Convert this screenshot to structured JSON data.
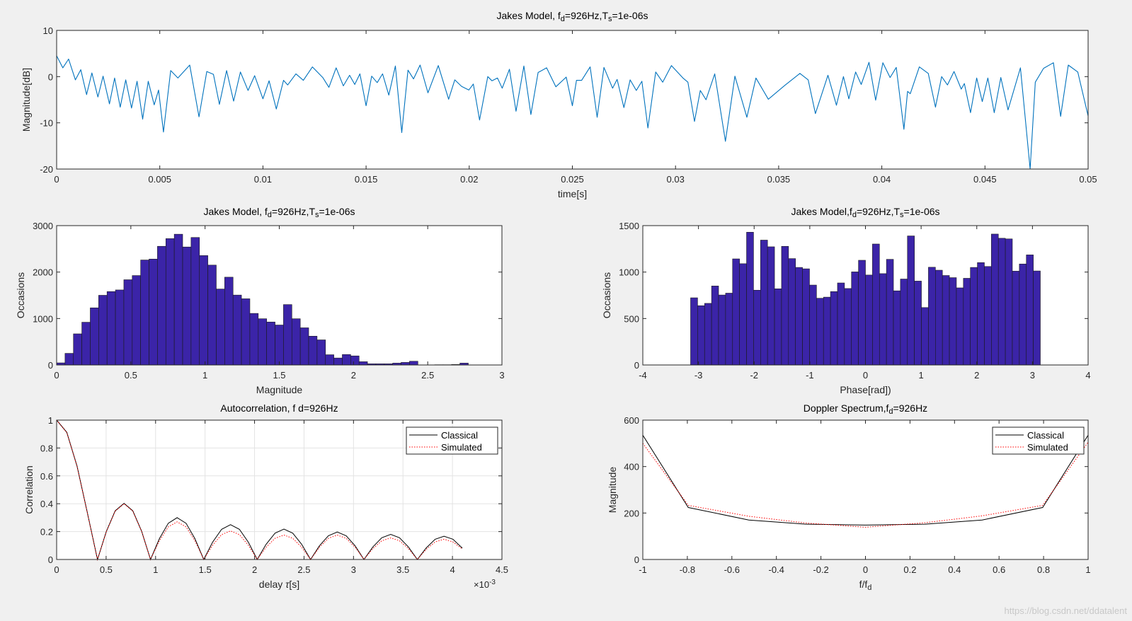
{
  "figure": {
    "watermark": "https://blog.csdn.net/ddatalent"
  },
  "chart_data": [
    {
      "id": "envelope",
      "type": "line",
      "title_parts": [
        {
          "text": "Jakes Model, f"
        },
        {
          "text": "d",
          "sub": true
        },
        {
          "text": "=926Hz,T"
        },
        {
          "text": "s",
          "sub": true
        },
        {
          "text": "=1e-06s"
        }
      ],
      "xlabel": "time[s]",
      "ylabel": "Magnitude[dB]",
      "xlim": [
        0,
        0.05
      ],
      "ylim": [
        -20,
        10
      ],
      "x_ticks": [
        0,
        0.005,
        0.01,
        0.015,
        0.02,
        0.025,
        0.03,
        0.035,
        0.04,
        0.045,
        0.05
      ],
      "x_tick_labels": [
        "0",
        "0.005",
        "0.01",
        "0.015",
        "0.02",
        "0.025",
        "0.03",
        "0.035",
        "0.04",
        "0.045",
        "0.05"
      ],
      "y_ticks": [
        -20,
        -10,
        0,
        10
      ],
      "y_tick_labels": [
        "-20",
        "-10",
        "0",
        "10"
      ],
      "color": "#0072bd",
      "points_ms_db": [
        [
          0,
          4.5
        ],
        [
          0.3,
          1.9
        ],
        [
          0.58,
          3.8
        ],
        [
          0.91,
          -0.7
        ],
        [
          1.17,
          1.5
        ],
        [
          1.45,
          -3.9
        ],
        [
          1.71,
          0.8
        ],
        [
          2.0,
          -4.4
        ],
        [
          2.25,
          0.1
        ],
        [
          2.56,
          -5.9
        ],
        [
          2.81,
          -0.3
        ],
        [
          3.08,
          -6.6
        ],
        [
          3.35,
          -0.7
        ],
        [
          3.63,
          -6.8
        ],
        [
          3.9,
          -1.0
        ],
        [
          4.17,
          -9.2
        ],
        [
          4.44,
          -1.0
        ],
        [
          4.73,
          -6.1
        ],
        [
          4.94,
          -2.9
        ],
        [
          5.18,
          -12
        ],
        [
          5.53,
          1.3
        ],
        [
          5.88,
          -0.3
        ],
        [
          6.45,
          2.5
        ],
        [
          6.9,
          -8.7
        ],
        [
          7.28,
          1.1
        ],
        [
          7.6,
          0.5
        ],
        [
          7.89,
          -6
        ],
        [
          8.24,
          1.3
        ],
        [
          8.58,
          -5.3
        ],
        [
          8.91,
          1.0
        ],
        [
          9.28,
          -3
        ],
        [
          9.6,
          0.2
        ],
        [
          10.0,
          -4.8
        ],
        [
          10.3,
          -0.9
        ],
        [
          10.65,
          -7
        ],
        [
          11.0,
          -0.8
        ],
        [
          11.2,
          -1.8
        ],
        [
          11.6,
          0.6
        ],
        [
          11.96,
          -0.8
        ],
        [
          12.4,
          2.1
        ],
        [
          12.9,
          -0.2
        ],
        [
          13.2,
          -2.3
        ],
        [
          13.55,
          1.9
        ],
        [
          13.9,
          -2
        ],
        [
          14.2,
          0.3
        ],
        [
          14.45,
          -1.7
        ],
        [
          14.7,
          0.6
        ],
        [
          15.0,
          -6.3
        ],
        [
          15.27,
          0.1
        ],
        [
          15.54,
          -1.3
        ],
        [
          15.8,
          0.6
        ],
        [
          16.1,
          -4
        ],
        [
          16.42,
          2.3
        ],
        [
          16.73,
          -12.1
        ],
        [
          17.03,
          1.4
        ],
        [
          17.3,
          -0.5
        ],
        [
          17.62,
          2.5
        ],
        [
          18.0,
          -3.5
        ],
        [
          18.5,
          2.4
        ],
        [
          19.0,
          -4.9
        ],
        [
          19.3,
          -0.7
        ],
        [
          19.63,
          -2.1
        ],
        [
          19.98,
          -2.9
        ],
        [
          20.2,
          -1.6
        ],
        [
          20.5,
          -9.4
        ],
        [
          20.9,
          0
        ],
        [
          21.1,
          -0.9
        ],
        [
          21.37,
          -0.3
        ],
        [
          21.6,
          -2.5
        ],
        [
          21.95,
          1.6
        ],
        [
          22.27,
          -7.5
        ],
        [
          22.65,
          2.3
        ],
        [
          22.99,
          -8.2
        ],
        [
          23.34,
          0.9
        ],
        [
          23.75,
          1.9
        ],
        [
          24.2,
          -2.2
        ],
        [
          24.7,
          -0.1
        ],
        [
          25.0,
          -6.3
        ],
        [
          25.2,
          -0.8
        ],
        [
          25.45,
          -0.8
        ],
        [
          25.86,
          2.1
        ],
        [
          26.2,
          -8.8
        ],
        [
          26.53,
          2.0
        ],
        [
          26.95,
          -2.5
        ],
        [
          27.17,
          -0.6
        ],
        [
          27.5,
          -6.7
        ],
        [
          27.8,
          -0.7
        ],
        [
          28.1,
          -3
        ],
        [
          28.37,
          -1
        ],
        [
          28.66,
          -11.1
        ],
        [
          29.04,
          1
        ],
        [
          29.38,
          -1.2
        ],
        [
          29.8,
          2.4
        ],
        [
          30.36,
          -0.3
        ],
        [
          30.6,
          -1.2
        ],
        [
          30.92,
          -9.7
        ],
        [
          31.2,
          -3
        ],
        [
          31.48,
          -5
        ],
        [
          31.9,
          0.6
        ],
        [
          32.42,
          -14
        ],
        [
          32.88,
          0.1
        ],
        [
          33.46,
          -8.8
        ],
        [
          33.9,
          -0.3
        ],
        [
          34.5,
          -4.9
        ],
        [
          35.3,
          -1.9
        ],
        [
          36.03,
          0.7
        ],
        [
          36.43,
          -0.7
        ],
        [
          36.78,
          -8
        ],
        [
          37.39,
          0.3
        ],
        [
          37.8,
          -6.2
        ],
        [
          38.14,
          0
        ],
        [
          38.4,
          -4.8
        ],
        [
          38.73,
          1
        ],
        [
          39.0,
          -1.7
        ],
        [
          39.38,
          3.1
        ],
        [
          39.7,
          -5.1
        ],
        [
          40.05,
          3
        ],
        [
          40.4,
          -0.2
        ],
        [
          40.7,
          2
        ],
        [
          41.07,
          -11.4
        ],
        [
          41.25,
          -3.2
        ],
        [
          41.38,
          -3.7
        ],
        [
          41.82,
          2.1
        ],
        [
          42.25,
          0.7
        ],
        [
          42.6,
          -6.6
        ],
        [
          42.9,
          0
        ],
        [
          43.18,
          -1.8
        ],
        [
          43.5,
          1.1
        ],
        [
          43.85,
          -2.7
        ],
        [
          44.0,
          -1.5
        ],
        [
          44.3,
          -7.8
        ],
        [
          44.6,
          -0.3
        ],
        [
          44.87,
          -5.4
        ],
        [
          45.14,
          -0.3
        ],
        [
          45.45,
          -7.8
        ],
        [
          45.77,
          -0.2
        ],
        [
          46.12,
          -7.2
        ],
        [
          46.72,
          1.9
        ],
        [
          47.19,
          -20
        ],
        [
          47.44,
          -1.2
        ],
        [
          47.84,
          1.8
        ],
        [
          48.32,
          3.0
        ],
        [
          48.67,
          -8.6
        ],
        [
          49.04,
          2.5
        ],
        [
          49.5,
          1.0
        ],
        [
          50,
          -8.5
        ]
      ]
    },
    {
      "id": "magnitude-hist",
      "type": "bar",
      "title_parts": [
        {
          "text": "Jakes Model, f"
        },
        {
          "text": "d",
          "sub": true
        },
        {
          "text": "=926Hz,T"
        },
        {
          "text": "s",
          "sub": true
        },
        {
          "text": "=1e-06s"
        }
      ],
      "xlabel": "Magnitude",
      "ylabel": "Occasions",
      "xlim": [
        0,
        3
      ],
      "ylim": [
        0,
        3000
      ],
      "x_ticks": [
        0,
        0.5,
        1,
        1.5,
        2,
        2.5,
        3
      ],
      "x_tick_labels": [
        "0",
        "0.5",
        "1",
        "1.5",
        "2",
        "2.5",
        "3"
      ],
      "y_ticks": [
        0,
        1000,
        2000,
        3000
      ],
      "y_tick_labels": [
        "0",
        "1000",
        "2000",
        "3000"
      ],
      "bin_start": 0,
      "bin_width": 0.0566,
      "color": "#3b24a8",
      "counts": [
        45,
        250,
        670,
        920,
        1230,
        1500,
        1580,
        1615,
        1835,
        1925,
        2260,
        2280,
        2555,
        2720,
        2815,
        2540,
        2745,
        2355,
        2150,
        1635,
        1890,
        1505,
        1425,
        1110,
        995,
        925,
        860,
        1300,
        995,
        800,
        620,
        540,
        220,
        150,
        225,
        195,
        70,
        25,
        25,
        25,
        40,
        55,
        80,
        0,
        2,
        5,
        5,
        10,
        40
      ]
    },
    {
      "id": "phase-hist",
      "type": "bar",
      "title_parts": [
        {
          "text": "Jakes Model,f"
        },
        {
          "text": "d",
          "sub": true
        },
        {
          "text": "=926Hz,T"
        },
        {
          "text": "s",
          "sub": true
        },
        {
          "text": "=1e-06s"
        }
      ],
      "xlabel": "Phase[rad])",
      "ylabel": "Occasions",
      "xlim": [
        -4,
        4
      ],
      "ylim": [
        0,
        1500
      ],
      "x_ticks": [
        -4,
        -3,
        -2,
        -1,
        0,
        1,
        2,
        3,
        4
      ],
      "x_tick_labels": [
        "-4",
        "-3",
        "-2",
        "-1",
        "0",
        "1",
        "2",
        "3",
        "4"
      ],
      "y_ticks": [
        0,
        500,
        1000,
        1500
      ],
      "y_tick_labels": [
        "0",
        "500",
        "1000",
        "1500"
      ],
      "bin_start": -3.14159,
      "bin_width": 0.125664,
      "color": "#3b24a8",
      "counts": [
        723,
        638,
        663,
        850,
        753,
        773,
        1142,
        1090,
        1429,
        805,
        1344,
        1272,
        820,
        1277,
        1145,
        1050,
        1035,
        860,
        718,
        730,
        790,
        883,
        823,
        1002,
        1127,
        968,
        1302,
        983,
        1137,
        798,
        925,
        1389,
        903,
        618,
        1052,
        1020,
        963,
        940,
        830,
        933,
        1050,
        1102,
        1060,
        1409,
        1364,
        1357,
        1010,
        1087,
        1185,
        1012
      ]
    },
    {
      "id": "autocorrelation",
      "type": "line",
      "title_parts": [
        {
          "text": "Autocorrelation, f d=926Hz"
        }
      ],
      "xlabel_parts": [
        {
          "text": "delay "
        },
        {
          "text": "τ",
          "italic": true
        },
        {
          "text": "[s]"
        }
      ],
      "ylabel": "Correlation",
      "x_multiplier_label": "×10",
      "x_multiplier_exp": "-3",
      "xlim": [
        0,
        4.5
      ],
      "ylim": [
        0,
        1
      ],
      "grid": true,
      "x_ticks": [
        0,
        0.5,
        1,
        1.5,
        2,
        2.5,
        3,
        3.5,
        4,
        4.5
      ],
      "x_tick_labels": [
        "0",
        "0.5",
        "1",
        "1.5",
        "2",
        "2.5",
        "3",
        "3.5",
        "4",
        "4.5"
      ],
      "y_ticks": [
        0,
        0.2,
        0.4,
        0.6,
        0.8,
        1
      ],
      "y_tick_labels": [
        "0",
        "0.2",
        "0.4",
        "0.6",
        "0.8",
        "1"
      ],
      "legend": {
        "position": "top-right",
        "entries": [
          "Classical",
          "Simulated"
        ]
      },
      "x": [
        0,
        0.103,
        0.206,
        0.309,
        0.413,
        0.502,
        0.592,
        0.681,
        0.77,
        0.86,
        0.949,
        1.039,
        1.128,
        1.218,
        1.308,
        1.397,
        1.487,
        1.577,
        1.667,
        1.757,
        1.847,
        1.937,
        2.027,
        2.117,
        2.207,
        2.297,
        2.386,
        2.476,
        2.566,
        2.656,
        2.746,
        2.836,
        2.926,
        3.016,
        3.106,
        3.196,
        3.286,
        3.376,
        3.465,
        3.555,
        3.645,
        3.735,
        3.825,
        3.915,
        4.005,
        4.1
      ],
      "series": [
        {
          "name": "Classical",
          "color": "#000000",
          "style": "solid",
          "values": [
            1,
            0.912,
            0.671,
            0.34,
            0,
            0.201,
            0.349,
            0.403,
            0.349,
            0.201,
            0,
            0.15,
            0.26,
            0.3,
            0.26,
            0.15,
            0,
            0.125,
            0.216,
            0.25,
            0.216,
            0.125,
            0,
            0.109,
            0.189,
            0.218,
            0.189,
            0.109,
            0,
            0.098,
            0.17,
            0.197,
            0.17,
            0.098,
            0,
            0.09,
            0.156,
            0.18,
            0.156,
            0.09,
            0,
            0.083,
            0.145,
            0.167,
            0.145,
            0.081
          ]
        },
        {
          "name": "Simulated",
          "color": "#ff0000",
          "style": "dotted",
          "values": [
            1,
            0.91,
            0.668,
            0.338,
            0,
            0.199,
            0.346,
            0.4,
            0.346,
            0.199,
            0,
            0.135,
            0.234,
            0.27,
            0.234,
            0.135,
            0,
            0.103,
            0.178,
            0.205,
            0.178,
            0.103,
            0,
            0.088,
            0.152,
            0.175,
            0.152,
            0.088,
            0,
            0.088,
            0.152,
            0.175,
            0.152,
            0.088,
            0,
            0.078,
            0.134,
            0.155,
            0.134,
            0.078,
            0,
            0.073,
            0.126,
            0.145,
            0.126,
            0.075
          ]
        }
      ]
    },
    {
      "id": "doppler-spectrum",
      "type": "line",
      "title_parts": [
        {
          "text": "Doppler Spectrum,f"
        },
        {
          "text": "d",
          "sub": true
        },
        {
          "text": "=926Hz"
        }
      ],
      "xlabel_parts": [
        {
          "text": "f/f"
        },
        {
          "text": "d",
          "sub": true
        }
      ],
      "ylabel": "Magnitude",
      "xlim": [
        -1,
        1
      ],
      "ylim": [
        0,
        600
      ],
      "x_ticks": [
        -1,
        -0.8,
        -0.6,
        -0.4,
        -0.2,
        0,
        0.2,
        0.4,
        0.6,
        0.8,
        1
      ],
      "x_tick_labels": [
        "-1",
        "-0.8",
        "-0.6",
        "-0.4",
        "-0.2",
        "0",
        "0.2",
        "0.4",
        "0.6",
        "0.8",
        "1"
      ],
      "y_ticks": [
        0,
        200,
        400,
        600
      ],
      "y_tick_labels": [
        "0",
        "200",
        "400",
        "600"
      ],
      "legend": {
        "position": "top-right",
        "entries": [
          "Classical",
          "Simulated"
        ]
      },
      "x": [
        -1,
        -0.796,
        -0.524,
        -0.267,
        0,
        0.267,
        0.524,
        0.796,
        1
      ],
      "series": [
        {
          "name": "Classical",
          "color": "#000000",
          "style": "solid",
          "values": [
            535,
            224,
            170,
            152,
            148,
            152,
            170,
            224,
            535
          ]
        },
        {
          "name": "Simulated",
          "color": "#ff0000",
          "style": "dotted",
          "values": [
            500,
            233,
            186,
            157,
            139,
            158,
            188,
            233,
            505
          ]
        }
      ]
    }
  ]
}
